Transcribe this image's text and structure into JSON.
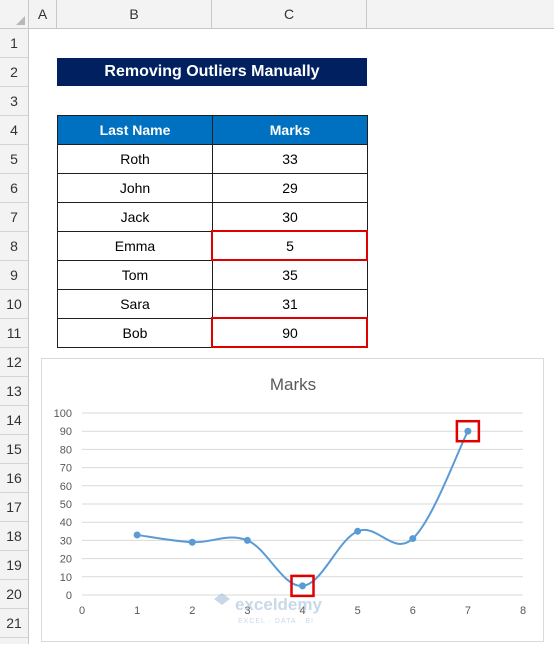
{
  "columns": [
    "A",
    "B",
    "C"
  ],
  "rows": [
    "1",
    "2",
    "3",
    "4",
    "5",
    "6",
    "7",
    "8",
    "9",
    "10",
    "11",
    "12",
    "13",
    "14",
    "15",
    "16",
    "17",
    "18",
    "19",
    "20",
    "21"
  ],
  "sheet_title": "Removing Outliers Manually",
  "table": {
    "headers": [
      "Last Name",
      "Marks"
    ],
    "rows": [
      {
        "name": "Roth",
        "marks": "33"
      },
      {
        "name": "John",
        "marks": "29"
      },
      {
        "name": "Jack",
        "marks": "30"
      },
      {
        "name": "Emma",
        "marks": "5"
      },
      {
        "name": "Tom",
        "marks": "35"
      },
      {
        "name": "Sara",
        "marks": "31"
      },
      {
        "name": "Bob",
        "marks": "90"
      }
    ]
  },
  "colors": {
    "title_bg": "#002060",
    "header_bg": "#0070c0",
    "highlight": "#e00000",
    "line": "#5b9bd5"
  },
  "watermark": {
    "brand": "exceldemy",
    "tagline": "EXCEL · DATA · BI"
  },
  "chart_data": {
    "type": "line",
    "title": "Marks",
    "x": [
      1,
      2,
      3,
      4,
      5,
      6,
      7
    ],
    "series": [
      {
        "values": [
          33,
          29,
          30,
          5,
          35,
          31,
          90
        ]
      }
    ],
    "xlim": [
      0,
      8
    ],
    "ylim": [
      0,
      100
    ],
    "x_ticks": [
      "0",
      "1",
      "2",
      "3",
      "4",
      "5",
      "6",
      "7",
      "8"
    ],
    "y_ticks": [
      "0",
      "10",
      "20",
      "30",
      "40",
      "50",
      "60",
      "70",
      "80",
      "90",
      "100"
    ],
    "highlighted_points": [
      4,
      7
    ],
    "grid": "horizontal",
    "smooth": true
  }
}
